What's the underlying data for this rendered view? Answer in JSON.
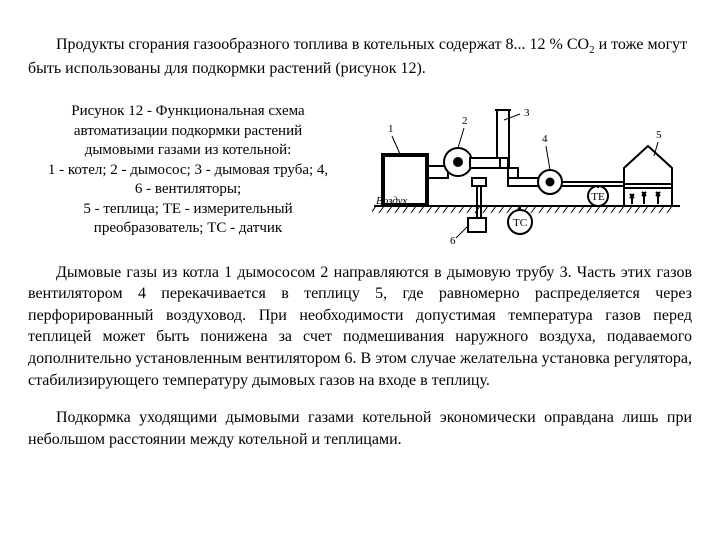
{
  "intro": {
    "text_before_sub": "Продукты сгорания газообразного топлива в котельных содержат 8... 12 % СО",
    "sub": "2",
    "text_after_sub": " и тоже могут быть использованы для подкормки растений (рисунок 12)."
  },
  "caption": {
    "l1": "Рисунок 12 - Функциональная схема",
    "l2": "автоматизации  подкормки растений",
    "l3": "дымовыми газами из котельной:",
    "l4": "1 - котел; 2 - дымосос; 3 - дымовая труба; 4,",
    "l5": "6 - вентиляторы;",
    "l6": "5 - теплица; ТЕ - измерительный",
    "l7": "преобразователь; ТС - датчик"
  },
  "diagram": {
    "labels": {
      "n1": "1",
      "n2": "2",
      "n3": "3",
      "n4": "4",
      "n5": "5",
      "n6": "6",
      "air": "Воздух",
      "tc": "ТС",
      "te": "ТЕ"
    },
    "colors": {
      "bg": "#ffffff",
      "stroke": "#000000",
      "hatch": "#000000",
      "text": "#000000"
    },
    "line_width_main": 2,
    "line_width_thin": 1,
    "font_size_labels": 11,
    "font_size_air": 11,
    "font_style_air": "italic"
  },
  "body": {
    "p1": "Дымовые газы из котла 1 дымососом 2 направляются в дымовую трубу 3. Часть этих газов вентилятором 4 перекачивается в теплицу 5, где равномерно распределяется через перфорированный воздуховод. При необходимости допустимая температура газов перед теплицей может быть понижена за счет подмешивания наружного воздуха, подаваемого дополнительно установленным вентилятором 6. В этом случае желательна установка регулятора, стабилизирующего температуру дымовых газов на входе в теплицу.",
    "p2": "Подкормка уходящими дымовыми газами котельной экономически оправдана лишь при небольшом расстоянии между котельной и теплицами."
  }
}
